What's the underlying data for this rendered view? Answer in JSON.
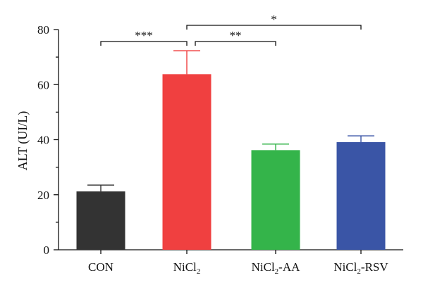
{
  "chart_data": {
    "type": "bar",
    "categories": [
      {
        "main": "CON",
        "sub": "",
        "tail": ""
      },
      {
        "main": "NiCl",
        "sub": "2",
        "tail": ""
      },
      {
        "main": "NiCl",
        "sub": "2",
        "tail": "-AA"
      },
      {
        "main": "NiCl",
        "sub": "2",
        "tail": "-RSV"
      }
    ],
    "values": [
      21.2,
      63.8,
      36.2,
      39.1
    ],
    "errors": [
      2.3,
      8.5,
      2.2,
      2.3
    ],
    "colors": [
      "#333333",
      "#f04040",
      "#34b44a",
      "#3a55a6"
    ],
    "ylabel": "ALT (UI/L)",
    "xlabel": "",
    "ylim": [
      0,
      80
    ],
    "yticks": [
      0,
      20,
      40,
      60,
      80
    ],
    "grid": false,
    "significance": [
      {
        "from": 0,
        "to": 1,
        "label": "***"
      },
      {
        "from": 1,
        "to": 2,
        "label": "**"
      },
      {
        "from": 1,
        "to": 3,
        "label": "*"
      }
    ]
  }
}
